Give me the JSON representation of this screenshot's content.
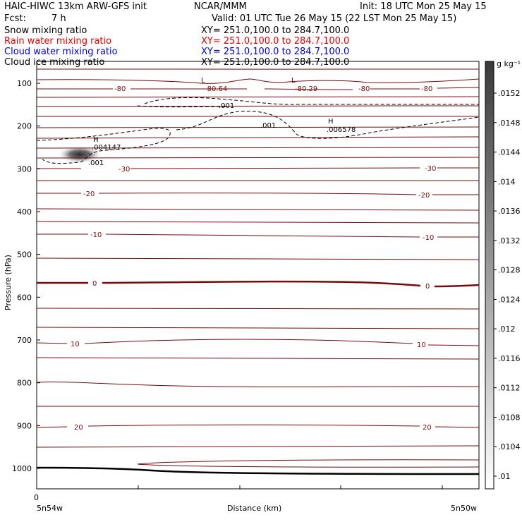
{
  "header": {
    "model": "HAIC-HIWC 13km ARW-GFS init",
    "org": "NCAR/MMM",
    "init": "Init: 18 UTC Mon 25 May 15",
    "fcst_label": "Fcst:",
    "fcst_value": "7 h",
    "valid": "Valid: 01 UTC Tue 26 May 15 (22 LST Mon 25 May 15)",
    "fields": [
      {
        "name": "Snow mixing ratio",
        "xy": "XY= 251.0,100.0 to 284.7,100.0",
        "color": "#000000"
      },
      {
        "name": "Rain water mixing ratio",
        "xy": "XY= 251.0,100.0 to 284.7,100.0",
        "color": "#e00000"
      },
      {
        "name": "Cloud water mixing ratio",
        "xy": "XY= 251.0,100.0 to 284.7,100.0",
        "color": "#0000d0"
      },
      {
        "name": "Cloud ice mixing ratio",
        "xy": "XY= 251.0,100.0 to 284.7,100.0",
        "color": "#000000"
      }
    ]
  },
  "chart_data": {
    "type": "cross-section",
    "ylabel": "Pressure (hPa)",
    "xlabel": "Distance (km)",
    "yticks": [
      100,
      200,
      300,
      400,
      500,
      600,
      700,
      800,
      900,
      1000
    ],
    "x_start_label": "0",
    "left_location": "5n54w",
    "right_location": "5n50w",
    "colorbar": {
      "unit": "g kg⁻¹",
      "ticks": [
        ".0152",
        ".0148",
        ".0144",
        ".014",
        ".0136",
        ".0132",
        ".0128",
        ".0124",
        ".012",
        ".0116",
        ".0112",
        ".0108",
        ".0104",
        ".01"
      ],
      "range": [
        0.01,
        0.0154
      ]
    },
    "temperature_labels": [
      "-80",
      "-80.64",
      "-80.29",
      "-80",
      "-80",
      "-30",
      "-30",
      "-20",
      "-20",
      "-10",
      "-10",
      "0",
      "0",
      "10",
      "10",
      "20",
      "20"
    ],
    "low_centers": [
      {
        "symbol": "L",
        "value": "-80.64"
      },
      {
        "symbol": "L",
        "value": "-80.29"
      }
    ],
    "high_centers": [
      {
        "symbol": "H",
        "value": ".004147"
      },
      {
        "symbol": "H",
        "value": ".006578"
      }
    ],
    "dashed_contour_labels": [
      ".001",
      ".001",
      ".001"
    ],
    "shaded_maximum": {
      "pressure_hpa": 270,
      "value_approx": 0.0154
    }
  }
}
